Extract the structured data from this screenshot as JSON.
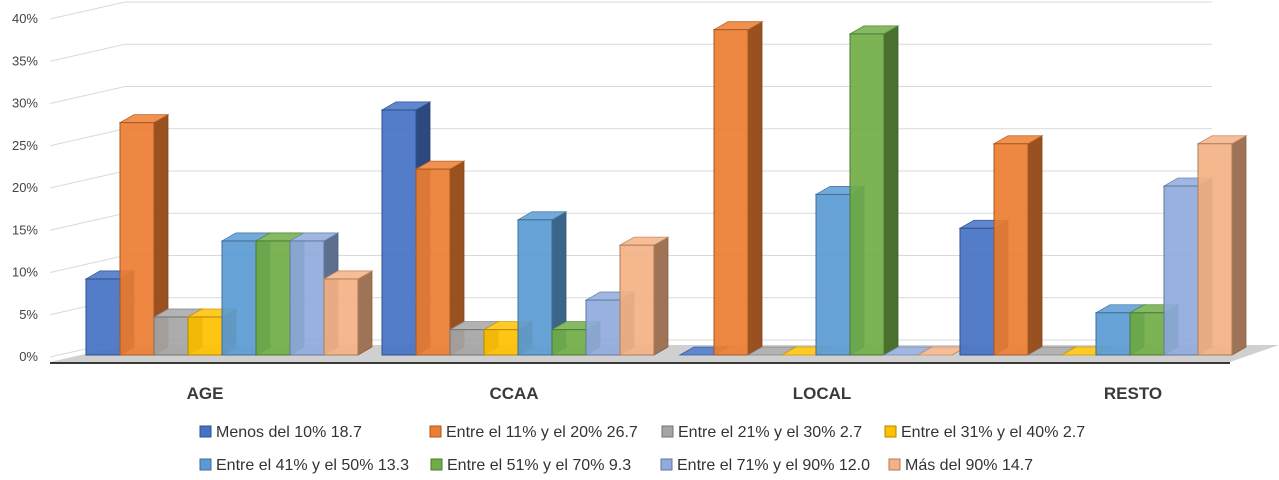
{
  "chart_data": {
    "type": "bar",
    "style": "3d-clustered-column",
    "categories": [
      "AGE",
      "CCAA",
      "LOCAL",
      "RESTO"
    ],
    "ylim": [
      0,
      40
    ],
    "yticks": [
      "0%",
      "5%",
      "10%",
      "15%",
      "20%",
      "25%",
      "30%",
      "35%",
      "40%"
    ],
    "grid": true,
    "legend_position": "bottom",
    "series": [
      {
        "name": "Menos del 10% 18.7",
        "color": "#4472C4",
        "values": [
          9,
          29,
          0,
          15
        ]
      },
      {
        "name": "Entre el 11% y el 20% 26.7",
        "color": "#ED7D31",
        "values": [
          27.5,
          22,
          38.5,
          25
        ]
      },
      {
        "name": "Entre el 21% y el 30% 2.7",
        "color": "#A5A5A5",
        "values": [
          4.5,
          3,
          0,
          0
        ]
      },
      {
        "name": "Entre el 31% y el 40% 2.7",
        "color": "#FFC000",
        "values": [
          4.5,
          3,
          0,
          0
        ]
      },
      {
        "name": "Entre el 41% y el 50% 13.3",
        "color": "#5B9BD5",
        "values": [
          13.5,
          16,
          19,
          5
        ]
      },
      {
        "name": "Entre el 51% y el 70% 9.3",
        "color": "#70AD47",
        "values": [
          13.5,
          3,
          38,
          5
        ]
      },
      {
        "name": "Entre el 71% y el 90% 12.0",
        "color": "#8FAADC",
        "values": [
          13.5,
          6.5,
          0,
          20
        ]
      },
      {
        "name": "Más del 90% 14.7",
        "color": "#F4B183",
        "values": [
          9,
          13,
          0,
          25
        ]
      }
    ]
  }
}
